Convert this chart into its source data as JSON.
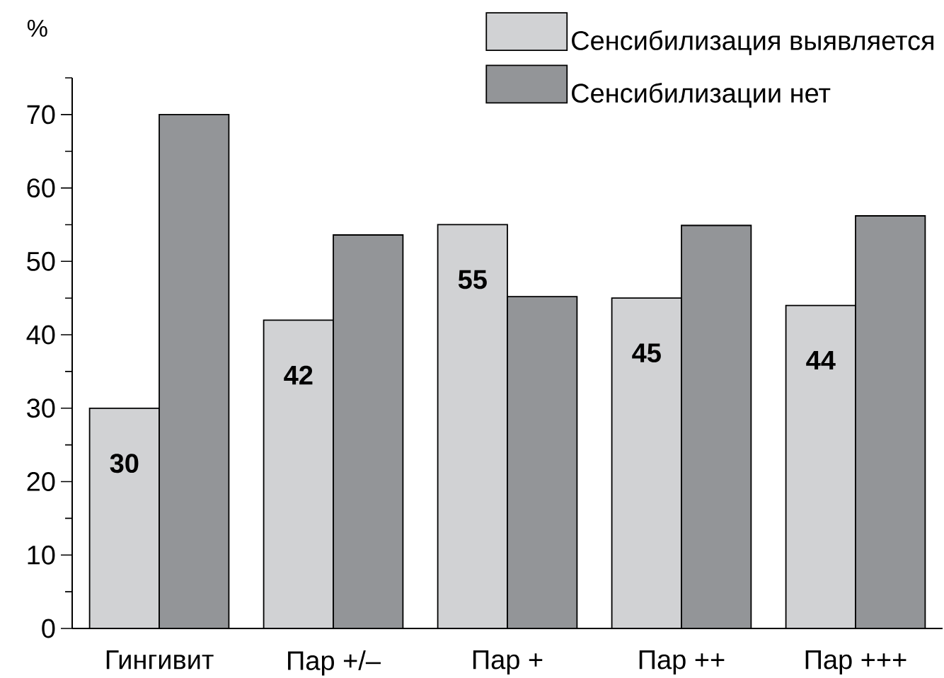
{
  "chart_data": {
    "type": "bar",
    "ylabel": "%",
    "categories": [
      "Гингивит",
      "Пар +/–",
      "Пар +",
      "Пар ++",
      "Пар +++"
    ],
    "series": [
      {
        "name": "Сенсибилизация выявляется",
        "color": "#d1d2d4",
        "values": [
          30,
          42,
          55,
          45,
          44
        ],
        "value_labels": [
          "30",
          "42",
          "55",
          "45",
          "44"
        ]
      },
      {
        "name": "Сенсибилизации нет",
        "color": "#939598",
        "values": [
          70,
          53.6,
          45.2,
          54.9,
          56.2
        ]
      }
    ],
    "ylim": [
      0,
      75
    ],
    "yticks": [
      0,
      {
        "value": 5,
        "label": null
      },
      10,
      {
        "value": 15,
        "label": null
      },
      20,
      {
        "value": 25,
        "label": null
      },
      30,
      {
        "value": 35,
        "label": null
      },
      40,
      {
        "value": 45,
        "label": null
      },
      50,
      {
        "value": 55,
        "label": null
      },
      60,
      {
        "value": 65,
        "label": null
      },
      70,
      {
        "value": 75,
        "label": null
      }
    ],
    "legend": "top right"
  }
}
